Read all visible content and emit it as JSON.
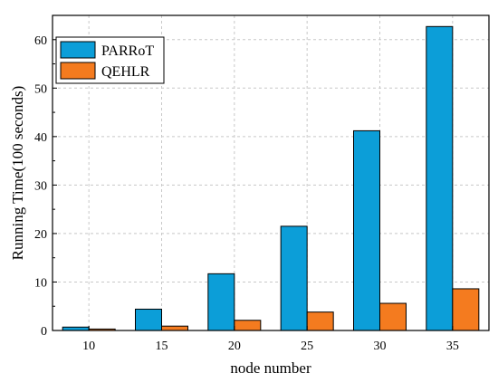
{
  "chart_data": {
    "type": "bar",
    "categories": [
      "10",
      "15",
      "20",
      "25",
      "30",
      "35"
    ],
    "series": [
      {
        "name": "PARRoT",
        "color": "#0c9ed8",
        "values": [
          0.7,
          4.4,
          11.7,
          21.5,
          41.2,
          62.7
        ]
      },
      {
        "name": "QEHLR",
        "color": "#f47b1f",
        "values": [
          0.3,
          0.9,
          2.1,
          3.8,
          5.6,
          8.6
        ]
      }
    ],
    "xlabel": "node number",
    "ylabel": "Running Time(100 seconds)",
    "ylim": [
      0,
      65
    ],
    "yticks": [
      0,
      10,
      20,
      30,
      40,
      50,
      60
    ],
    "grid": true,
    "legend_position": "top-left"
  }
}
